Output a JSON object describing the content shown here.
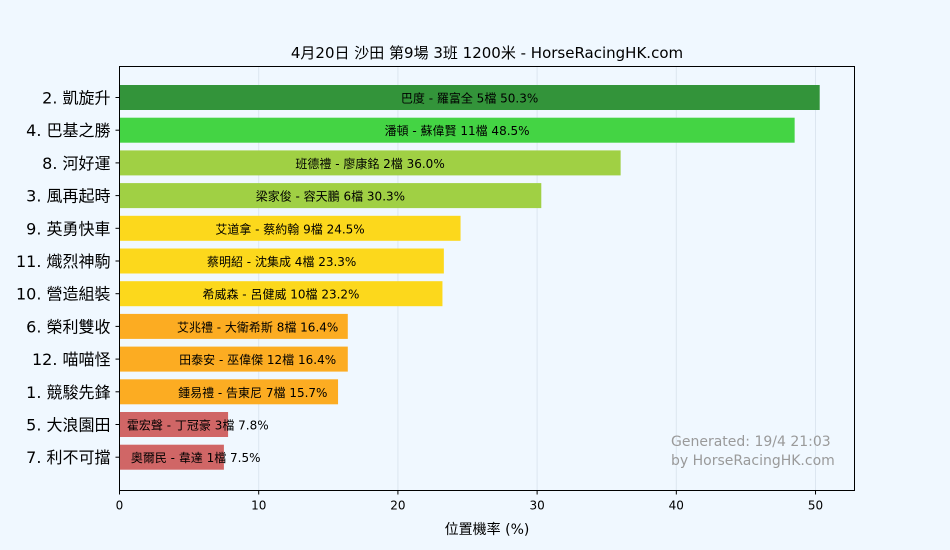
{
  "chart_data": {
    "type": "bar",
    "orientation": "horizontal",
    "title": "4月20日  沙田  第9場  3班  1200米 - HorseRacingHK.com",
    "xlabel": "位置機率 (%)",
    "ylabel": "",
    "xlim": [
      0,
      52.8
    ],
    "xticks": [
      0,
      10,
      20,
      30,
      40,
      50
    ],
    "grid": "vertical",
    "categories": [
      "2. 凱旋升",
      "4. 巴基之勝",
      "8. 河好運",
      "3. 風再起時",
      "9. 英勇快車",
      "11. 熾烈神駒",
      "10. 營造組裝",
      "6. 榮利雙收",
      "12. 喵喵怪",
      "1. 競駿先鋒",
      "5. 大浪園田",
      "7. 利不可擋"
    ],
    "values": [
      50.3,
      48.5,
      36.0,
      30.3,
      24.5,
      23.3,
      23.2,
      16.4,
      16.4,
      15.7,
      7.8,
      7.5
    ],
    "bar_labels": [
      "巴度 - 羅富全 5檔  50.3%",
      "潘頓 - 蘇偉賢 11檔  48.5%",
      "班德禮 - 廖康銘 2檔  36.0%",
      "梁家俊 - 容天鵬 6檔  30.3%",
      "艾道拿 - 蔡約翰 9檔  24.5%",
      "蔡明紹 - 沈集成 4檔  23.3%",
      "希威森 - 呂健威 10檔  23.2%",
      "艾兆禮 - 大衛希斯 8檔  16.4%",
      "田泰安 - 巫偉傑 12檔  16.4%",
      "鍾易禮 - 告東尼 7檔  15.7%",
      "霍宏聲 - 丁冠豪 3檔  7.8%",
      "奧爾民 - 韋達 1檔  7.5%"
    ],
    "bar_colors": [
      "#33943a",
      "#44d444",
      "#a0d044",
      "#a0d044",
      "#fcd81c",
      "#fcd81c",
      "#fcd81c",
      "#fcac22",
      "#fcac22",
      "#fcac22",
      "#d06666",
      "#d06666"
    ]
  },
  "watermark": {
    "line1": "Generated: 19/4 21:03",
    "line2": "by HorseRacingHK.com"
  },
  "colors": {
    "background": "#f0f8ff",
    "grid": "#dce6f0"
  }
}
